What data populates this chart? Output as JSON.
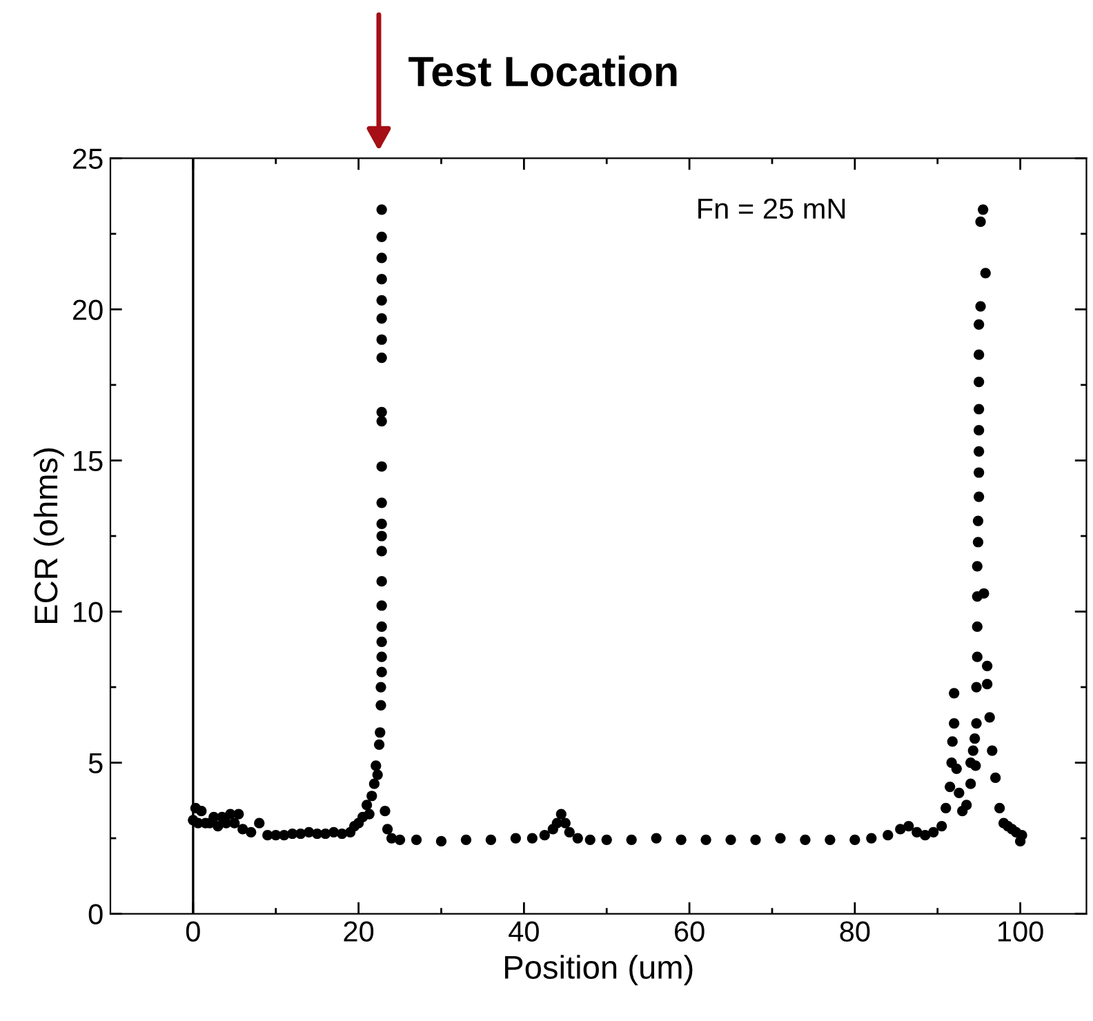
{
  "chart_data": {
    "type": "scatter",
    "xlabel": "Position (um)",
    "ylabel": "ECR (ohms)",
    "xlim": [
      -10,
      108
    ],
    "ylim": [
      0,
      25
    ],
    "xticks": [
      0,
      {
        "value": 10,
        "label": null
      },
      20,
      {
        "value": 30,
        "label": null
      },
      40,
      {
        "value": 50,
        "label": null
      },
      60,
      {
        "value": 70,
        "label": null
      },
      80,
      {
        "value": 90,
        "label": null
      },
      100
    ],
    "yticks": [
      0,
      {
        "value": 2.5,
        "label": null
      },
      5,
      {
        "value": 7.5,
        "label": null
      },
      10,
      {
        "value": 12.5,
        "label": null
      },
      15,
      {
        "value": 17.5,
        "label": null
      },
      20,
      {
        "value": 22.5,
        "label": null
      },
      25
    ],
    "marker": "circle",
    "grid": false,
    "ref_lines": [
      {
        "axis": "x",
        "value": 0,
        "label": null,
        "color": "#000000"
      }
    ],
    "annotations": [
      "Test Location",
      "Fn = 25 mN"
    ],
    "series": [
      {
        "color": "#000000",
        "x": [
          0,
          0.3,
          0.6,
          1,
          1.5,
          2,
          2.5,
          3,
          3.5,
          4,
          4.5,
          5,
          5.5,
          6,
          7,
          8,
          9,
          10,
          11,
          12,
          13,
          14,
          15,
          16,
          17,
          18,
          19,
          19.5,
          20,
          20.5,
          21,
          21.3,
          21.6,
          21.9,
          22.1,
          22.3,
          22.5,
          22.6,
          22.7,
          22.7,
          22.8,
          22.8,
          22.8,
          22.8,
          22.8,
          22.8,
          22.8,
          22.8,
          22.8,
          22.8,
          22.8,
          22.8,
          22.8,
          22.8,
          22.8,
          22.8,
          22.8,
          22.8,
          22.8,
          22.8,
          22.8,
          23.2,
          23.5,
          24,
          25,
          27,
          30,
          33,
          36,
          39,
          41,
          42.5,
          43.5,
          44,
          44.5,
          45,
          45.5,
          46.5,
          48,
          50,
          53,
          56,
          59,
          62,
          65,
          68,
          71,
          74,
          77,
          80,
          82,
          84,
          85.5,
          86.5,
          87.5,
          88.5,
          89.5,
          90.5,
          91,
          91.5,
          91.7,
          91.8,
          92,
          92,
          92.3,
          92.6,
          93,
          93.5,
          94,
          94,
          94.3,
          94.5,
          94.6,
          94.7,
          94.7,
          94.8,
          94.8,
          94.8,
          94.8,
          94.9,
          94.9,
          95,
          95,
          95,
          95,
          95,
          95,
          95,
          95,
          95.2,
          95.2,
          95.5,
          95.6,
          95.8,
          96,
          96,
          96.3,
          96.6,
          97,
          97.5,
          98,
          98.5,
          99,
          99.5,
          100,
          100.2
        ],
        "values": [
          3.1,
          3.5,
          3.0,
          3.4,
          3.0,
          3.0,
          3.2,
          2.9,
          3.2,
          3.0,
          3.3,
          3.0,
          3.3,
          2.8,
          2.7,
          3.0,
          2.6,
          2.6,
          2.6,
          2.65,
          2.65,
          2.7,
          2.65,
          2.65,
          2.7,
          2.65,
          2.7,
          2.9,
          3.0,
          3.2,
          3.6,
          3.3,
          3.9,
          4.3,
          4.9,
          4.6,
          5.6,
          6.0,
          6.9,
          7.5,
          8.0,
          8.5,
          9.0,
          9.5,
          10.2,
          11.0,
          12.0,
          12.5,
          12.9,
          13.6,
          14.8,
          16.3,
          16.6,
          18.4,
          19.0,
          19.7,
          20.3,
          21.0,
          21.7,
          22.4,
          23.3,
          3.4,
          2.8,
          2.5,
          2.45,
          2.45,
          2.4,
          2.45,
          2.45,
          2.5,
          2.5,
          2.6,
          2.8,
          3.0,
          3.3,
          3.0,
          2.7,
          2.5,
          2.45,
          2.45,
          2.45,
          2.5,
          2.45,
          2.45,
          2.45,
          2.45,
          2.5,
          2.45,
          2.45,
          2.45,
          2.5,
          2.6,
          2.8,
          2.9,
          2.7,
          2.6,
          2.7,
          2.9,
          3.5,
          4.2,
          5.0,
          5.7,
          6.3,
          7.3,
          4.8,
          4.0,
          3.4,
          3.6,
          4.3,
          5.0,
          5.4,
          5.8,
          4.9,
          6.3,
          7.5,
          8.5,
          9.5,
          10.5,
          11.5,
          12.3,
          13.0,
          13.8,
          14.6,
          15.3,
          16.0,
          16.7,
          17.6,
          18.5,
          19.5,
          20.1,
          22.9,
          23.3,
          10.6,
          21.2,
          8.2,
          7.6,
          6.5,
          5.4,
          4.5,
          3.5,
          3.0,
          2.9,
          2.8,
          2.7,
          2.4,
          2.6
        ]
      }
    ]
  }
}
